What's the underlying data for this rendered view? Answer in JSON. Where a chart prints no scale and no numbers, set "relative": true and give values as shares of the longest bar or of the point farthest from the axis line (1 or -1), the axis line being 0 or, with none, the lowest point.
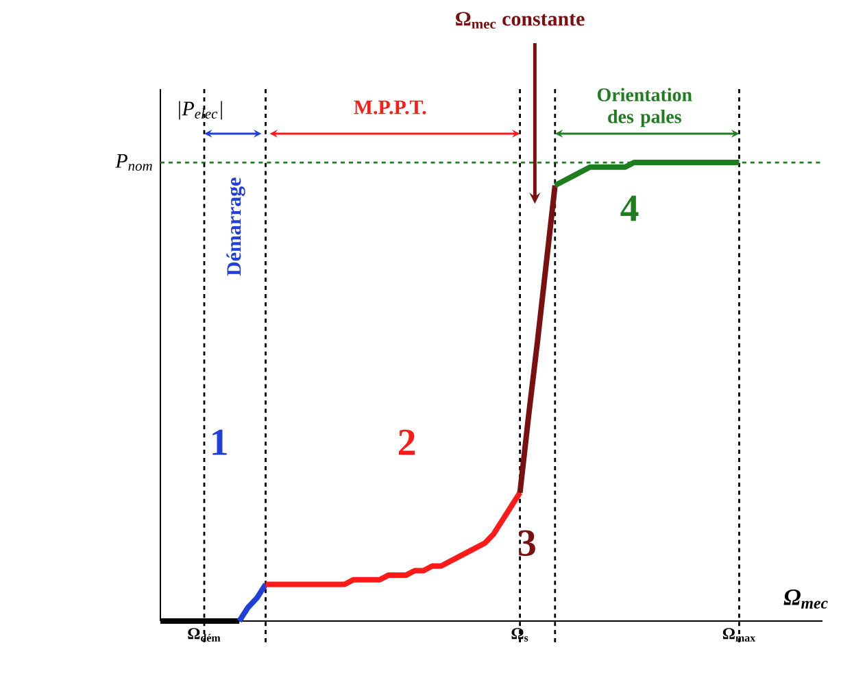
{
  "chart_data": {
    "type": "line",
    "relative": true,
    "xlabel": "Ω$_{mec}$",
    "ylabel": "|P$_{elec}$|",
    "categories": [
      null,
      null,
      null,
      null,
      null,
      "Ω$_{dém}$",
      null,
      null,
      null,
      null,
      null,
      null,
      null,
      null,
      null,
      null,
      null,
      null,
      null,
      null,
      null,
      null,
      null,
      null,
      null,
      null,
      null,
      null,
      null,
      null,
      null,
      null,
      null,
      null,
      null,
      null,
      null,
      null,
      null,
      null,
      null,
      "Ω$_{s}$",
      null,
      null,
      null,
      null,
      null,
      null,
      null,
      null,
      null,
      null,
      null,
      null,
      null,
      null,
      null,
      null,
      null,
      null,
      null,
      null,
      null,
      null,
      null,
      null,
      "Ω$_{max}$",
      null,
      null,
      null,
      null,
      null,
      null,
      null,
      null,
      null
    ],
    "series": [
      {
        "color": "#000000",
        "values": [
          0,
          0,
          0,
          0,
          0,
          0,
          0,
          0,
          0,
          0,
          null,
          null,
          null,
          null,
          null,
          null,
          null,
          null,
          null,
          null,
          null,
          null,
          null,
          null,
          null,
          null,
          null,
          null,
          null,
          null,
          null,
          null,
          null,
          null,
          null,
          null,
          null,
          null,
          null,
          null,
          null,
          null,
          null,
          null,
          null,
          null,
          null,
          null,
          null,
          null,
          null,
          null,
          null,
          null,
          null,
          null,
          null,
          null,
          null,
          null,
          null,
          null,
          null,
          null,
          null,
          null,
          null,
          null,
          null,
          null,
          null,
          null,
          null,
          null,
          null,
          null
        ]
      },
      {
        "color": "#1f3fd8",
        "values": [
          null,
          null,
          null,
          null,
          null,
          null,
          null,
          null,
          null,
          0,
          0.03,
          0.05,
          0.08,
          null,
          null,
          null,
          null,
          null,
          null,
          null,
          null,
          null,
          null,
          null,
          null,
          null,
          null,
          null,
          null,
          null,
          null,
          null,
          null,
          null,
          null,
          null,
          null,
          null,
          null,
          null,
          null,
          null,
          null,
          null,
          null,
          null,
          null,
          null,
          null,
          null,
          null,
          null,
          null,
          null,
          null,
          null,
          null,
          null,
          null,
          null,
          null,
          null,
          null,
          null,
          null,
          null,
          null,
          null,
          null,
          null,
          null,
          null,
          null,
          null,
          null,
          null
        ]
      },
      {
        "color": "#ff1a1a",
        "values": [
          null,
          null,
          null,
          null,
          null,
          null,
          null,
          null,
          null,
          null,
          null,
          null,
          0.08,
          0.08,
          0.08,
          0.08,
          0.08,
          0.08,
          0.08,
          0.08,
          0.08,
          0.08,
          0.09,
          0.09,
          0.09,
          0.09,
          0.1,
          0.1,
          0.1,
          0.11,
          0.11,
          0.12,
          0.12,
          0.13,
          0.14,
          0.15,
          0.16,
          0.17,
          0.19,
          0.22,
          0.25,
          0.28,
          null,
          null,
          null,
          null,
          null,
          null,
          null,
          null,
          null,
          null,
          null,
          null,
          null,
          null,
          null,
          null,
          null,
          null,
          null,
          null,
          null,
          null,
          null,
          null,
          null,
          null,
          null,
          null,
          null,
          null,
          null,
          null,
          null,
          null
        ]
      },
      {
        "color": "#7a1010",
        "values": [
          null,
          null,
          null,
          null,
          null,
          null,
          null,
          null,
          null,
          null,
          null,
          null,
          null,
          null,
          null,
          null,
          null,
          null,
          null,
          null,
          null,
          null,
          null,
          null,
          null,
          null,
          null,
          null,
          null,
          null,
          null,
          null,
          null,
          null,
          null,
          null,
          null,
          null,
          null,
          null,
          null,
          0.28,
          0.45,
          0.61,
          0.78,
          0.95,
          null,
          null,
          null,
          null,
          null,
          null,
          null,
          null,
          null,
          null,
          null,
          null,
          null,
          null,
          null,
          null,
          null,
          null,
          null,
          null,
          null,
          null,
          null,
          null,
          null,
          null,
          null,
          null,
          null,
          null
        ]
      },
      {
        "color": "#1e7d1e",
        "values": [
          null,
          null,
          null,
          null,
          null,
          null,
          null,
          null,
          null,
          null,
          null,
          null,
          null,
          null,
          null,
          null,
          null,
          null,
          null,
          null,
          null,
          null,
          null,
          null,
          null,
          null,
          null,
          null,
          null,
          null,
          null,
          null,
          null,
          null,
          null,
          null,
          null,
          null,
          null,
          null,
          null,
          null,
          null,
          null,
          null,
          0.95,
          0.96,
          0.97,
          0.98,
          0.99,
          0.99,
          0.99,
          0.99,
          0.99,
          1.0,
          1.0,
          1.0,
          1.0,
          1.0,
          1.0,
          1.0,
          1.0,
          1.0,
          1.0,
          1.0,
          1.0,
          1.0,
          null,
          null,
          null,
          null,
          null,
          null,
          null,
          null,
          null
        ]
      }
    ],
    "ref_lines": [
      {
        "axis": "y",
        "value": 1.0,
        "label": "P$_{nom}$",
        "color": "#1e7d1e",
        "line_style": "dashed"
      }
    ],
    "annotations": [
      "1",
      "2",
      "3",
      "4",
      "Démarrage",
      "M.P.P.T.",
      "Orientation des pales",
      "Ω$_{mec}$ constante"
    ],
    "grid": false,
    "marker": "none",
    "line_style": "solid"
  }
}
